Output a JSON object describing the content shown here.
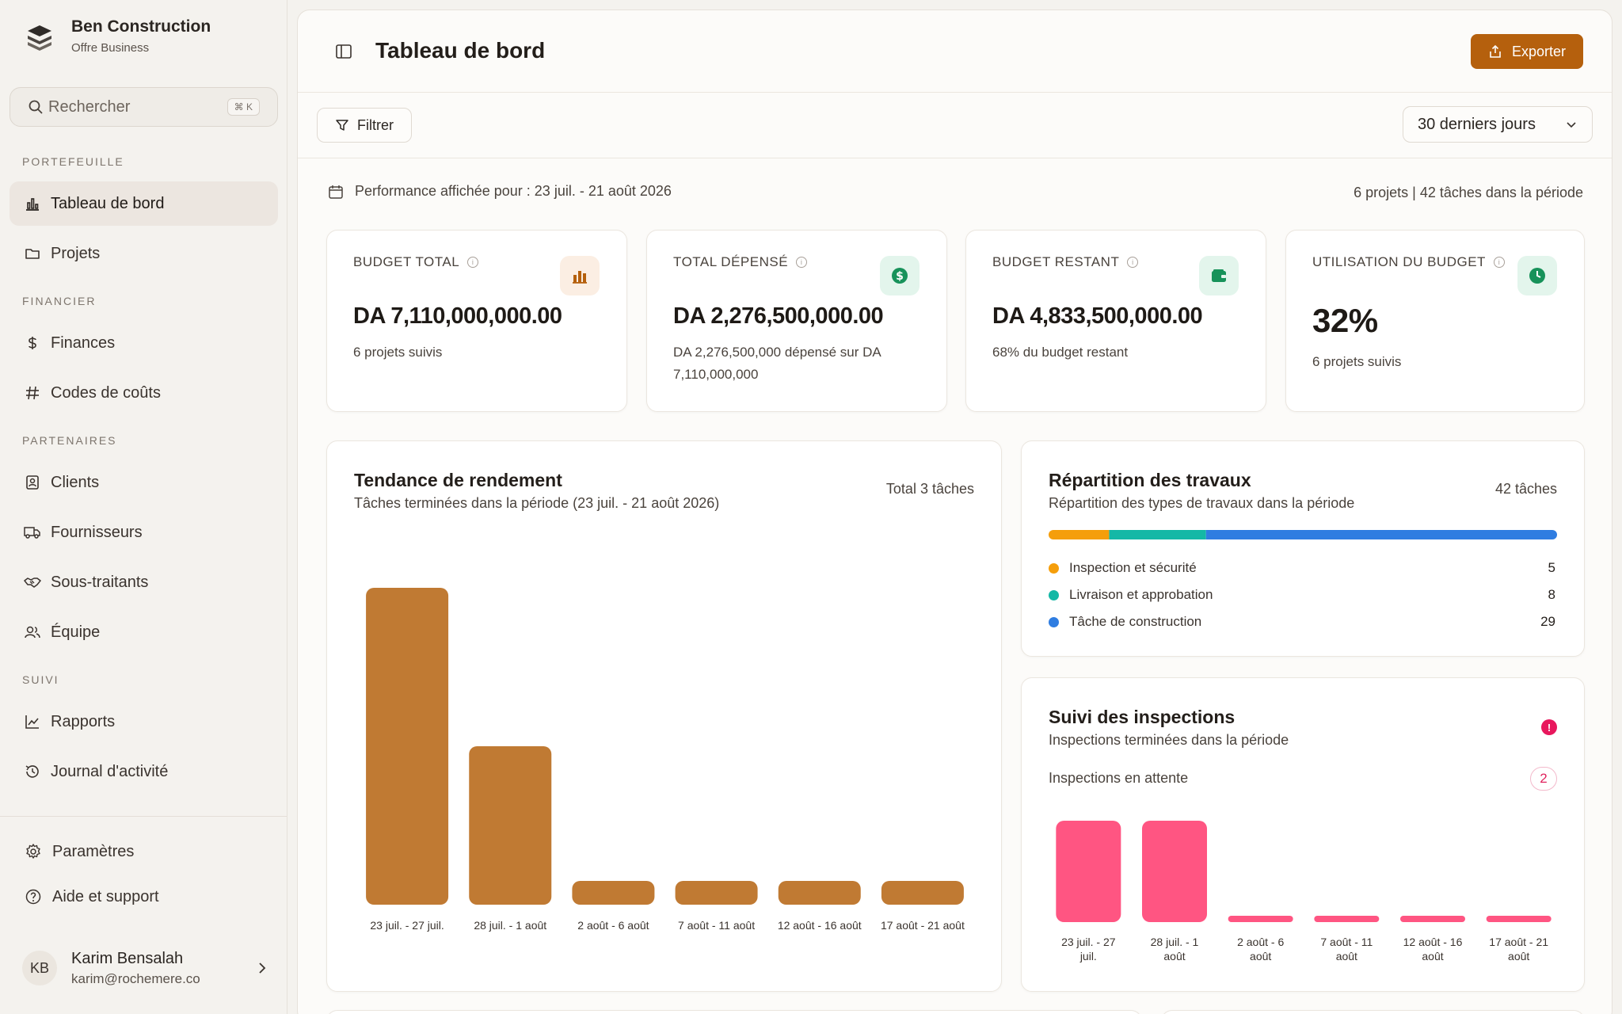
{
  "brand": {
    "name": "Ben Construction",
    "plan": "Offre Business"
  },
  "search": {
    "label": "Rechercher",
    "shortcut": "⌘ K"
  },
  "sidebar": {
    "sections": {
      "portfolio": "PORTEFEUILLE",
      "finance": "FINANCIER",
      "partners": "PARTENAIRES",
      "tracking": "SUIVI"
    },
    "items": {
      "dashboard": "Tableau de bord",
      "projects": "Projets",
      "finances": "Finances",
      "cost_codes": "Codes de coûts",
      "clients": "Clients",
      "suppliers": "Fournisseurs",
      "subcontractors": "Sous-traitants",
      "team": "Équipe",
      "reports": "Rapports",
      "activity_log": "Journal d'activité"
    },
    "footer": {
      "settings": "Paramètres",
      "help": "Aide et support"
    },
    "user": {
      "initials": "KB",
      "name": "Karim Bensalah",
      "email": "karim@rochemere.co"
    }
  },
  "header": {
    "title": "Tableau de bord",
    "export_label": "Exporter"
  },
  "filters": {
    "filter_label": "Filtrer",
    "range_selected": "30 derniers jours"
  },
  "performance": {
    "line": "Performance affichée pour : 23 juil. - 21 août 2026",
    "summary": "6 projets | 42 tâches dans la période"
  },
  "kpis": [
    {
      "label": "BUDGET TOTAL",
      "value": "DA 7,110,000,000.00",
      "sub": "6 projets suivis",
      "icon": "bar-chart-icon",
      "color": "#b5600d",
      "bg": "#fbeee3"
    },
    {
      "label": "TOTAL DÉPENSÉ",
      "value": "DA 2,276,500,000.00",
      "sub": "DA 2,276,500,000 dépensé sur DA 7,110,000,000",
      "icon": "dollar-icon",
      "color": "#17925a",
      "bg": "#e3f5ec"
    },
    {
      "label": "BUDGET RESTANT",
      "value": "DA 4,833,500,000.00",
      "sub": "68% du budget restant",
      "icon": "wallet-icon",
      "color": "#17925a",
      "bg": "#e3f5ec"
    },
    {
      "label": "UTILISATION DU BUDGET",
      "value": "32%",
      "sub": "6 projets suivis",
      "icon": "clock-icon",
      "color": "#17925a",
      "bg": "#e3f5ec"
    }
  ],
  "trend": {
    "title": "Tendance de rendement",
    "subtitle": "Tâches terminées dans la période (23 juil. - 21 août 2026)",
    "total": "Total 3 tâches"
  },
  "breakdown": {
    "title": "Répartition des travaux",
    "subtitle": "Répartition des types de travaux dans la période",
    "total": "42 tâches",
    "items": [
      {
        "name": "Inspection et sécurité",
        "value": 5,
        "color": "#f59e0b"
      },
      {
        "name": "Livraison et approbation",
        "value": 8,
        "color": "#14b8a6"
      },
      {
        "name": "Tâche de construction",
        "value": 29,
        "color": "#2f7de1"
      }
    ]
  },
  "inspections": {
    "title": "Suivi des inspections",
    "subtitle": "Inspections terminées dans la période",
    "alert": "!",
    "pending_label": "Inspections en attente",
    "pending_count": "2"
  },
  "chart_data": [
    {
      "type": "bar",
      "title": "Tendance de rendement",
      "categories": [
        "23 juil. - 27 juil.",
        "28 juil. - 1 août",
        "2 août - 6 août",
        "7 août - 11 août",
        "12 août - 16 août",
        "17 août - 21 août"
      ],
      "values": [
        2,
        1,
        0,
        0,
        0,
        0
      ],
      "ylim": [
        0,
        2
      ],
      "color": "#c07a33",
      "grid": false
    },
    {
      "type": "bar",
      "title": "Suivi des inspections",
      "categories": [
        "23 juil. - 27 juil.",
        "28 juil. - 1 août",
        "2 août - 6 août",
        "7 août - 11 août",
        "12 août - 16 août",
        "17 août - 21 août"
      ],
      "values": [
        1,
        1,
        0,
        0,
        0,
        0
      ],
      "ylim": [
        0,
        1
      ],
      "color": "#ff5582",
      "grid": false
    }
  ]
}
